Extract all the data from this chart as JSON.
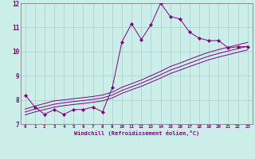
{
  "xlabel": "Windchill (Refroidissement éolien,°C)",
  "bg_color": "#cceee8",
  "line_color": "#800080",
  "grid_color": "#aacccc",
  "spine_color": "#808080",
  "xlim": [
    -0.5,
    23.5
  ],
  "ylim": [
    7.0,
    12.0
  ],
  "yticks": [
    7,
    8,
    9,
    10,
    11,
    12
  ],
  "xticks": [
    0,
    1,
    2,
    3,
    4,
    5,
    6,
    7,
    8,
    9,
    10,
    11,
    12,
    13,
    14,
    15,
    16,
    17,
    18,
    19,
    20,
    21,
    22,
    23
  ],
  "x_data": [
    0,
    1,
    2,
    3,
    4,
    5,
    6,
    7,
    8,
    9,
    10,
    11,
    12,
    13,
    14,
    15,
    16,
    17,
    18,
    19,
    20,
    21,
    22,
    23
  ],
  "y_main": [
    8.2,
    7.7,
    7.4,
    7.6,
    7.4,
    7.6,
    7.6,
    7.7,
    7.5,
    8.5,
    10.4,
    11.15,
    10.5,
    11.1,
    12.0,
    11.45,
    11.35,
    10.8,
    10.55,
    10.45,
    10.45,
    10.15,
    10.2,
    10.2
  ],
  "y_reg1": [
    7.62,
    7.74,
    7.85,
    7.96,
    8.0,
    8.05,
    8.09,
    8.14,
    8.2,
    8.32,
    8.52,
    8.67,
    8.82,
    9.0,
    9.18,
    9.38,
    9.52,
    9.68,
    9.83,
    9.97,
    10.08,
    10.18,
    10.28,
    10.38
  ],
  "y_reg2": [
    7.5,
    7.62,
    7.72,
    7.82,
    7.88,
    7.93,
    7.97,
    8.02,
    8.08,
    8.2,
    8.39,
    8.54,
    8.69,
    8.86,
    9.04,
    9.23,
    9.37,
    9.52,
    9.67,
    9.81,
    9.92,
    10.02,
    10.12,
    10.22
  ],
  "y_reg3": [
    7.38,
    7.5,
    7.6,
    7.7,
    7.76,
    7.81,
    7.85,
    7.9,
    7.96,
    8.08,
    8.27,
    8.42,
    8.56,
    8.73,
    8.9,
    9.09,
    9.23,
    9.38,
    9.52,
    9.66,
    9.77,
    9.87,
    9.97,
    10.07
  ]
}
